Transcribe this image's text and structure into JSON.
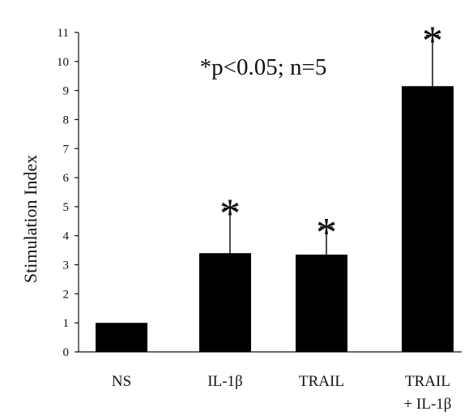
{
  "chart_data": {
    "type": "bar",
    "title": "",
    "xlabel": "",
    "ylabel": "Stimulation Index",
    "ylim": [
      0,
      11
    ],
    "yticks": [
      0,
      1,
      2,
      3,
      4,
      5,
      6,
      7,
      8,
      9,
      10,
      11
    ],
    "categories": [
      {
        "lines": [
          "NS"
        ]
      },
      {
        "lines": [
          "IL-1β"
        ]
      },
      {
        "lines": [
          "TRAIL"
        ]
      },
      {
        "lines": [
          "TRAIL",
          "+ IL-1β"
        ]
      }
    ],
    "values": [
      1.0,
      3.4,
      3.35,
      9.15
    ],
    "errors": [
      0,
      1.55,
      0.95,
      1.75
    ],
    "significance": [
      "",
      "*",
      "*",
      "*"
    ],
    "annotation": "*p<0.05; n=5",
    "bar_color": "#000000",
    "grid": false,
    "legend": "none"
  }
}
